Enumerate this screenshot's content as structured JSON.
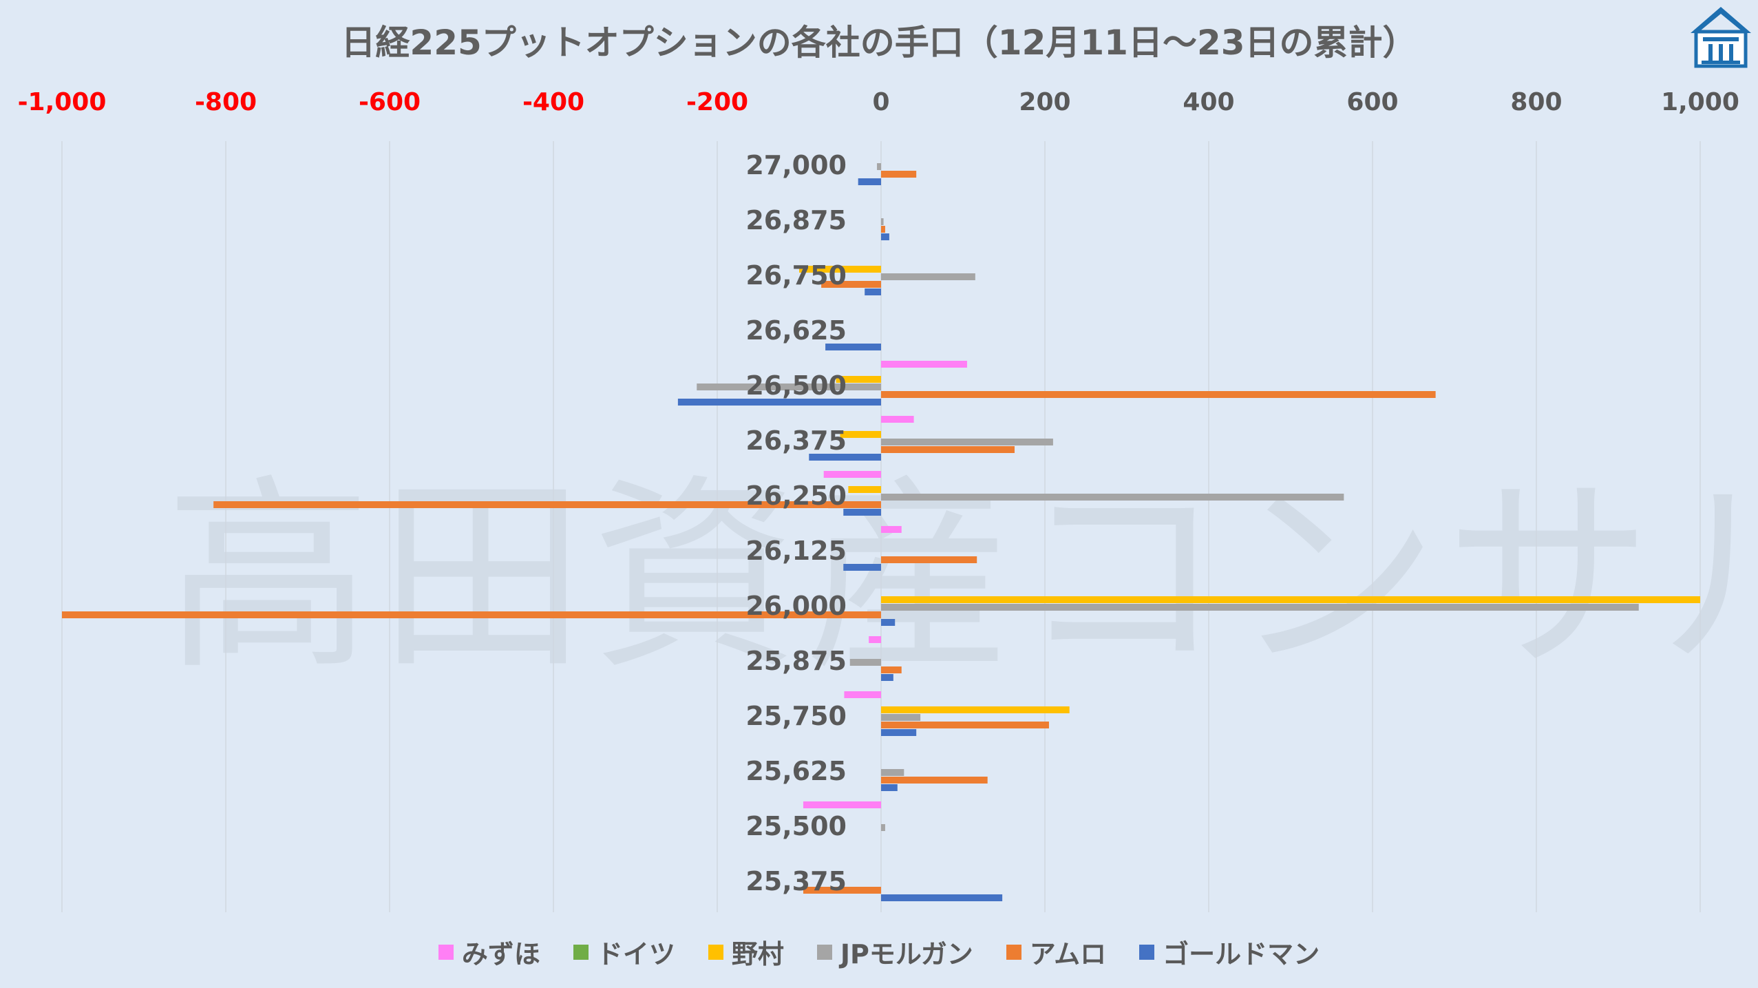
{
  "chart_data": {
    "type": "bar",
    "orientation": "horizontal",
    "title": "日経225プットオプションの各社の手口（12月11日～23日の累計）",
    "watermark": "高田資産コンサル",
    "categories": [
      "27,000",
      "26,875",
      "26,750",
      "26,625",
      "26,500",
      "26,375",
      "26,250",
      "26,125",
      "26,000",
      "25,875",
      "25,750",
      "25,625",
      "25,500",
      "25,375"
    ],
    "xlim": [
      -1000,
      1000
    ],
    "x_ticks": [
      "-1,000",
      "-800",
      "-600",
      "-400",
      "-200",
      "0",
      "200",
      "400",
      "600",
      "800",
      "1,000"
    ],
    "x_tick_values": [
      -1000,
      -800,
      -600,
      -400,
      -200,
      0,
      200,
      400,
      600,
      800,
      1000
    ],
    "negative_tick_color": "#ff0000",
    "tick_color": "#595959",
    "grid": true,
    "legend_position": "bottom",
    "series": [
      {
        "name": "みずほ",
        "color": "#ff7ff5",
        "values": [
          0,
          0,
          0,
          0,
          105,
          40,
          -70,
          25,
          0,
          -15,
          -45,
          0,
          -95,
          0
        ]
      },
      {
        "name": "ドイツ",
        "color": "#70ad47",
        "values": [
          0,
          0,
          0,
          0,
          0,
          0,
          0,
          0,
          0,
          0,
          0,
          0,
          0,
          0
        ]
      },
      {
        "name": "野村",
        "color": "#ffc000",
        "values": [
          0,
          0,
          -100,
          0,
          -55,
          -50,
          -40,
          0,
          1000,
          0,
          230,
          0,
          0,
          0
        ]
      },
      {
        "name": "JPモルガン",
        "color": "#a5a5a5",
        "values": [
          -5,
          3,
          115,
          0,
          -225,
          210,
          565,
          0,
          925,
          -38,
          48,
          28,
          5,
          0
        ]
      },
      {
        "name": "アムロ",
        "color": "#ed7d31",
        "values": [
          43,
          5,
          -73,
          0,
          677,
          163,
          -815,
          117,
          -1000,
          25,
          205,
          130,
          0,
          -95
        ]
      },
      {
        "name": "ゴールドマン",
        "color": "#4472c4",
        "values": [
          -28,
          10,
          -20,
          -68,
          -248,
          -88,
          -46,
          -46,
          17,
          15,
          43,
          20,
          0,
          148
        ]
      }
    ]
  }
}
